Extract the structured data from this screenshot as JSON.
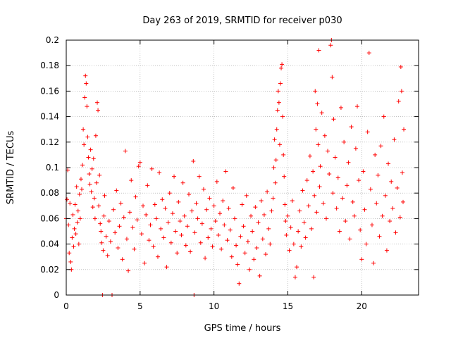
{
  "chart_data": {
    "type": "scatter",
    "title": "Day 263 of 2019, SRMTID for receiver p030",
    "xlabel": "GPS time / hours",
    "ylabel": "SRMTID / TECUs",
    "xlim": [
      0,
      23.85
    ],
    "ylim": [
      0,
      0.2
    ],
    "xticks": [
      0,
      5,
      10,
      15,
      20
    ],
    "xtick_labels": [
      "0",
      "5",
      "10",
      "15",
      "20"
    ],
    "yticks": [
      0,
      0.02,
      0.04,
      0.06,
      0.08,
      0.1,
      0.12,
      0.14,
      0.16,
      0.18,
      0.2
    ],
    "ytick_labels": [
      "0",
      "0.02",
      "0.04",
      "0.06",
      "0.08",
      "0.1",
      "0.12",
      "0.14",
      "0.16",
      "0.18",
      "0.2"
    ],
    "grid": true,
    "marker": "plus",
    "color": "#ff0000",
    "series": [
      {
        "name": "SRMTID",
        "points": [
          [
            0.0,
            0.06
          ],
          [
            0.05,
            0.075
          ],
          [
            0.1,
            0.098
          ],
          [
            0.15,
            0.055
          ],
          [
            0.2,
            0.033
          ],
          [
            0.25,
            0.072
          ],
          [
            0.3,
            0.026
          ],
          [
            0.35,
            0.02
          ],
          [
            0.4,
            0.045
          ],
          [
            0.45,
            0.063
          ],
          [
            0.5,
            0.038
          ],
          [
            0.55,
            0.052
          ],
          [
            0.6,
            0.071
          ],
          [
            0.65,
            0.048
          ],
          [
            0.7,
            0.085
          ],
          [
            0.75,
            0.057
          ],
          [
            0.8,
            0.066
          ],
          [
            0.85,
            0.04
          ],
          [
            0.9,
            0.079
          ],
          [
            0.95,
            0.06
          ],
          [
            1.0,
            0.091
          ],
          [
            1.05,
            0.083
          ],
          [
            1.1,
            0.102
          ],
          [
            1.15,
            0.13
          ],
          [
            1.2,
            0.118
          ],
          [
            1.25,
            0.155
          ],
          [
            1.3,
            0.172
          ],
          [
            1.35,
            0.166
          ],
          [
            1.4,
            0.148
          ],
          [
            1.45,
            0.124
          ],
          [
            1.5,
            0.108
          ],
          [
            1.55,
            0.095
          ],
          [
            1.6,
            0.087
          ],
          [
            1.65,
            0.114
          ],
          [
            1.7,
            0.081
          ],
          [
            1.75,
            0.099
          ],
          [
            1.8,
            0.069
          ],
          [
            1.85,
            0.107
          ],
          [
            1.9,
            0.076
          ],
          [
            1.95,
            0.06
          ],
          [
            2.0,
            0.125
          ],
          [
            2.05,
            0.088
          ],
          [
            2.1,
            0.151
          ],
          [
            2.15,
            0.145
          ],
          [
            2.2,
            0.07
          ],
          [
            2.25,
            0.094
          ],
          [
            2.3,
            0.056
          ],
          [
            2.35,
            0.05
          ],
          [
            2.4,
            0.041
          ],
          [
            2.45,
            0.0
          ],
          [
            2.5,
            0.035
          ],
          [
            2.55,
            0.062
          ],
          [
            2.6,
            0.078
          ],
          [
            2.7,
            0.046
          ],
          [
            2.8,
            0.031
          ],
          [
            2.9,
            0.058
          ],
          [
            3.0,
            0.042
          ],
          [
            3.1,
            0.0
          ],
          [
            3.2,
            0.067
          ],
          [
            3.3,
            0.049
          ],
          [
            3.4,
            0.082
          ],
          [
            3.5,
            0.037
          ],
          [
            3.6,
            0.054
          ],
          [
            3.7,
            0.072
          ],
          [
            3.8,
            0.028
          ],
          [
            3.9,
            0.061
          ],
          [
            4.0,
            0.113
          ],
          [
            4.1,
            0.044
          ],
          [
            4.2,
            0.019
          ],
          [
            4.3,
            0.065
          ],
          [
            4.4,
            0.09
          ],
          [
            4.5,
            0.053
          ],
          [
            4.6,
            0.036
          ],
          [
            4.7,
            0.077
          ],
          [
            4.8,
            0.059
          ],
          [
            4.9,
            0.101
          ],
          [
            5.0,
            0.104
          ],
          [
            5.1,
            0.048
          ],
          [
            5.2,
            0.07
          ],
          [
            5.3,
            0.025
          ],
          [
            5.4,
            0.063
          ],
          [
            5.5,
            0.086
          ],
          [
            5.6,
            0.043
          ],
          [
            5.7,
            0.055
          ],
          [
            5.8,
            0.099
          ],
          [
            5.9,
            0.038
          ],
          [
            6.0,
            0.071
          ],
          [
            6.1,
            0.06
          ],
          [
            6.2,
            0.03
          ],
          [
            6.3,
            0.096
          ],
          [
            6.4,
            0.052
          ],
          [
            6.5,
            0.075
          ],
          [
            6.6,
            0.045
          ],
          [
            6.7,
            0.068
          ],
          [
            6.8,
            0.022
          ],
          [
            6.9,
            0.057
          ],
          [
            7.0,
            0.08
          ],
          [
            7.1,
            0.041
          ],
          [
            7.2,
            0.064
          ],
          [
            7.3,
            0.093
          ],
          [
            7.4,
            0.05
          ],
          [
            7.5,
            0.033
          ],
          [
            7.6,
            0.073
          ],
          [
            7.7,
            0.058
          ],
          [
            7.8,
            0.047
          ],
          [
            7.9,
            0.088
          ],
          [
            8.0,
            0.062
          ],
          [
            8.1,
            0.039
          ],
          [
            8.2,
            0.054
          ],
          [
            8.3,
            0.079
          ],
          [
            8.4,
            0.034
          ],
          [
            8.5,
            0.066
          ],
          [
            8.6,
            0.105
          ],
          [
            8.65,
            0.0
          ],
          [
            8.7,
            0.049
          ],
          [
            8.8,
            0.072
          ],
          [
            8.9,
            0.06
          ],
          [
            9.0,
            0.093
          ],
          [
            9.1,
            0.041
          ],
          [
            9.2,
            0.056
          ],
          [
            9.3,
            0.083
          ],
          [
            9.4,
            0.029
          ],
          [
            9.5,
            0.067
          ],
          [
            9.6,
            0.045
          ],
          [
            9.7,
            0.076
          ],
          [
            9.8,
            0.052
          ],
          [
            9.9,
            0.038
          ],
          [
            10.0,
            0.07
          ],
          [
            10.1,
            0.058
          ],
          [
            10.2,
            0.089
          ],
          [
            10.3,
            0.047
          ],
          [
            10.4,
            0.064
          ],
          [
            10.5,
            0.036
          ],
          [
            10.6,
            0.074
          ],
          [
            10.7,
            0.055
          ],
          [
            10.8,
            0.097
          ],
          [
            10.9,
            0.043
          ],
          [
            11.0,
            0.068
          ],
          [
            11.1,
            0.051
          ],
          [
            11.2,
            0.03
          ],
          [
            11.3,
            0.084
          ],
          [
            11.4,
            0.06
          ],
          [
            11.5,
            0.039
          ],
          [
            11.6,
            0.024
          ],
          [
            11.7,
            0.009
          ],
          [
            11.8,
            0.046
          ],
          [
            11.9,
            0.071
          ],
          [
            12.0,
            0.054
          ],
          [
            12.1,
            0.033
          ],
          [
            12.2,
            0.078
          ],
          [
            12.3,
            0.042
          ],
          [
            12.4,
            0.02
          ],
          [
            12.5,
            0.062
          ],
          [
            12.6,
            0.05
          ],
          [
            12.7,
            0.028
          ],
          [
            12.8,
            0.069
          ],
          [
            12.9,
            0.037
          ],
          [
            13.0,
            0.057
          ],
          [
            13.1,
            0.015
          ],
          [
            13.2,
            0.074
          ],
          [
            13.3,
            0.044
          ],
          [
            13.4,
            0.063
          ],
          [
            13.5,
            0.032
          ],
          [
            13.6,
            0.081
          ],
          [
            13.7,
            0.052
          ],
          [
            13.8,
            0.04
          ],
          [
            13.9,
            0.066
          ],
          [
            14.0,
            0.076
          ],
          [
            14.05,
            0.1
          ],
          [
            14.1,
            0.122
          ],
          [
            14.15,
            0.088
          ],
          [
            14.2,
            0.106
          ],
          [
            14.25,
            0.13
          ],
          [
            14.3,
            0.145
          ],
          [
            14.35,
            0.16
          ],
          [
            14.4,
            0.151
          ],
          [
            14.45,
            0.118
          ],
          [
            14.5,
            0.166
          ],
          [
            14.55,
            0.178
          ],
          [
            14.6,
            0.181
          ],
          [
            14.65,
            0.14
          ],
          [
            14.7,
            0.11
          ],
          [
            14.75,
            0.093
          ],
          [
            14.8,
            0.071
          ],
          [
            14.85,
            0.058
          ],
          [
            14.9,
            0.047
          ],
          [
            15.0,
            0.062
          ],
          [
            15.1,
            0.035
          ],
          [
            15.2,
            0.053
          ],
          [
            15.3,
            0.074
          ],
          [
            15.4,
            0.04
          ],
          [
            15.5,
            0.014
          ],
          [
            15.6,
            0.022
          ],
          [
            15.7,
            0.05
          ],
          [
            15.8,
            0.066
          ],
          [
            15.9,
            0.038
          ],
          [
            16.0,
            0.082
          ],
          [
            16.1,
            0.057
          ],
          [
            16.2,
            0.045
          ],
          [
            16.3,
            0.09
          ],
          [
            16.4,
            0.07
          ],
          [
            16.5,
            0.109
          ],
          [
            16.6,
            0.052
          ],
          [
            16.7,
            0.097
          ],
          [
            16.75,
            0.014
          ],
          [
            16.8,
            0.078
          ],
          [
            16.85,
            0.16
          ],
          [
            16.9,
            0.13
          ],
          [
            16.95,
            0.065
          ],
          [
            17.0,
            0.15
          ],
          [
            17.05,
            0.118
          ],
          [
            17.1,
            0.192
          ],
          [
            17.15,
            0.085
          ],
          [
            17.2,
            0.101
          ],
          [
            17.3,
            0.143
          ],
          [
            17.4,
            0.072
          ],
          [
            17.5,
            0.125
          ],
          [
            17.6,
            0.06
          ],
          [
            17.7,
            0.113
          ],
          [
            17.8,
            0.095
          ],
          [
            17.9,
            0.196
          ],
          [
            17.95,
            0.2
          ],
          [
            18.0,
            0.171
          ],
          [
            18.05,
            0.08
          ],
          [
            18.1,
            0.138
          ],
          [
            18.2,
            0.108
          ],
          [
            18.3,
            0.068
          ],
          [
            18.4,
            0.092
          ],
          [
            18.5,
            0.05
          ],
          [
            18.6,
            0.147
          ],
          [
            18.7,
            0.076
          ],
          [
            18.8,
            0.12
          ],
          [
            18.9,
            0.058
          ],
          [
            19.0,
            0.086
          ],
          [
            19.1,
            0.104
          ],
          [
            19.2,
            0.044
          ],
          [
            19.3,
            0.132
          ],
          [
            19.4,
            0.073
          ],
          [
            19.5,
            0.062
          ],
          [
            19.6,
            0.115
          ],
          [
            19.7,
            0.148
          ],
          [
            19.8,
            0.09
          ],
          [
            19.9,
            0.051
          ],
          [
            20.0,
            0.028
          ],
          [
            20.1,
            0.097
          ],
          [
            20.2,
            0.067
          ],
          [
            20.3,
            0.04
          ],
          [
            20.4,
            0.128
          ],
          [
            20.5,
            0.19
          ],
          [
            20.6,
            0.083
          ],
          [
            20.7,
            0.055
          ],
          [
            20.8,
            0.025
          ],
          [
            20.9,
            0.11
          ],
          [
            21.0,
            0.072
          ],
          [
            21.1,
            0.094
          ],
          [
            21.2,
            0.046
          ],
          [
            21.3,
            0.117
          ],
          [
            21.4,
            0.062
          ],
          [
            21.5,
            0.14
          ],
          [
            21.6,
            0.078
          ],
          [
            21.7,
            0.035
          ],
          [
            21.8,
            0.103
          ],
          [
            21.9,
            0.058
          ],
          [
            22.0,
            0.089
          ],
          [
            22.1,
            0.068
          ],
          [
            22.2,
            0.122
          ],
          [
            22.3,
            0.049
          ],
          [
            22.4,
            0.084
          ],
          [
            22.5,
            0.152
          ],
          [
            22.6,
            0.061
          ],
          [
            22.65,
            0.179
          ],
          [
            22.7,
            0.16
          ],
          [
            22.75,
            0.096
          ],
          [
            22.8,
            0.073
          ],
          [
            22.85,
            0.13
          ]
        ]
      }
    ]
  }
}
